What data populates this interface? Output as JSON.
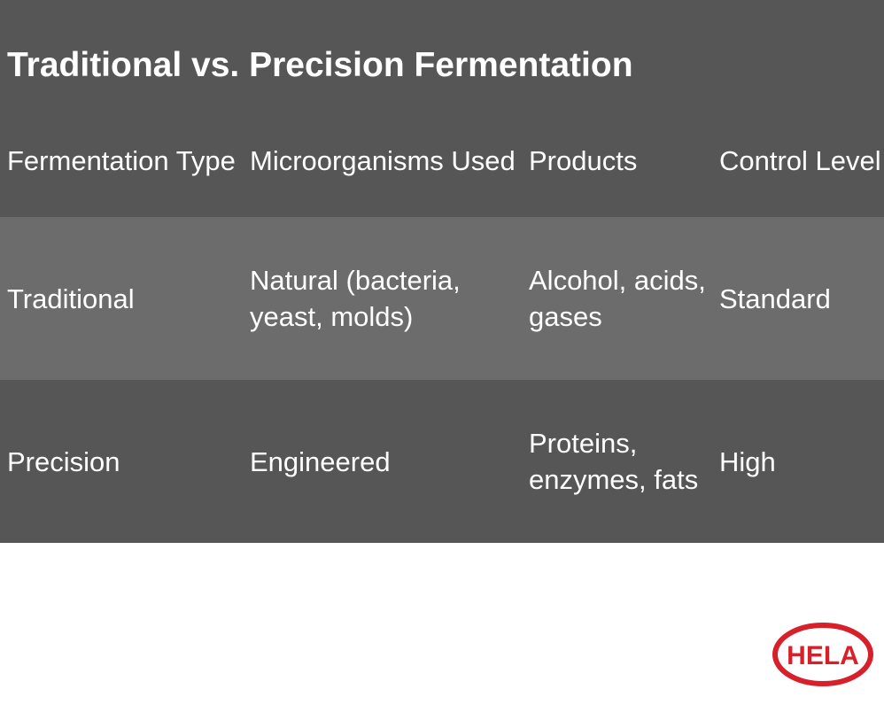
{
  "title": "Traditional vs. Precision Fermentation",
  "table": {
    "header": [
      "Fermentation Type",
      "Microorganisms Used",
      "Products",
      "Control Level"
    ],
    "rows": [
      [
        "Traditional",
        "Natural (bacteria, yeast, molds)",
        "Alcohol, acids, gases",
        "Standard"
      ],
      [
        "Precision",
        "Engineered",
        "Proteins, enzymes, fats",
        "High"
      ]
    ]
  },
  "logo": {
    "text": "HELA"
  }
}
